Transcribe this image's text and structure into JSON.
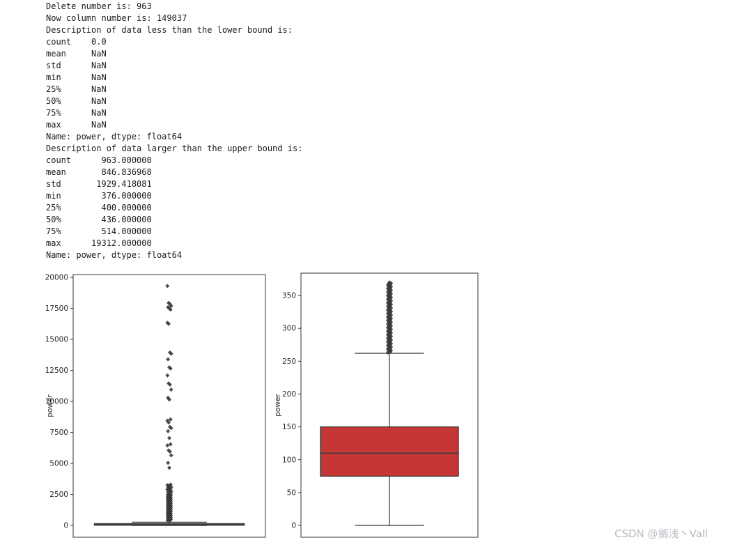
{
  "console": {
    "lines": [
      "Delete number is: 963",
      "Now column number is: 149037",
      "Description of data less than the lower bound is:",
      "count    0.0",
      "mean     NaN",
      "std      NaN",
      "min      NaN",
      "25%      NaN",
      "50%      NaN",
      "75%      NaN",
      "max      NaN",
      "Name: power, dtype: float64",
      "Description of data larger than the upper bound is:",
      "count      963.000000",
      "mean       846.836968",
      "std       1929.418081",
      "min        376.000000",
      "25%        400.000000",
      "50%        436.000000",
      "75%        514.000000",
      "max      19312.000000",
      "Name: power, dtype: float64"
    ]
  },
  "watermark": "CSDN @搁浅丶Vall",
  "colors": {
    "axis": "#333333",
    "tick_text": "#262626",
    "outlier": "#3a3a3a",
    "median": "#3a3a3a"
  },
  "chart_data": [
    {
      "type": "boxplot",
      "title": "",
      "ylabel": "power",
      "yticks": [
        0,
        2500,
        5000,
        7500,
        10000,
        12500,
        15000,
        17500,
        20000
      ],
      "ylim": [
        -950,
        20230
      ],
      "box": {
        "q1": 75,
        "median": 110,
        "q3": 150,
        "whisker_low": 0,
        "whisker_high": 263
      },
      "box_fill": "#9c9c9c",
      "outliers_dense": {
        "min": 380,
        "max": 2600,
        "count": 70
      },
      "outliers": [
        19312,
        17950,
        17850,
        17700,
        17600,
        17500,
        17400,
        16350,
        16250,
        13950,
        13850,
        13400,
        12750,
        12650,
        12100,
        11450,
        11350,
        10950,
        10300,
        10150,
        8550,
        8450,
        8300,
        7950,
        7850,
        7600,
        7050,
        6550,
        6450,
        6050,
        5950,
        5650,
        5050,
        4650,
        3300,
        3250,
        3200,
        3150,
        3100,
        3050,
        3000,
        2950,
        2900,
        2850,
        2800,
        2750,
        2700,
        2650
      ]
    },
    {
      "type": "boxplot",
      "title": "",
      "ylabel": "power",
      "yticks": [
        0,
        50,
        100,
        150,
        200,
        250,
        300,
        350
      ],
      "ylim": [
        -18,
        384
      ],
      "box": {
        "q1": 75,
        "median": 110,
        "q3": 150,
        "whisker_low": 0,
        "whisker_high": 262
      },
      "box_fill": "#c53634",
      "outliers_dense": {
        "min": 263,
        "max": 370,
        "count": 100
      },
      "outliers": []
    }
  ]
}
